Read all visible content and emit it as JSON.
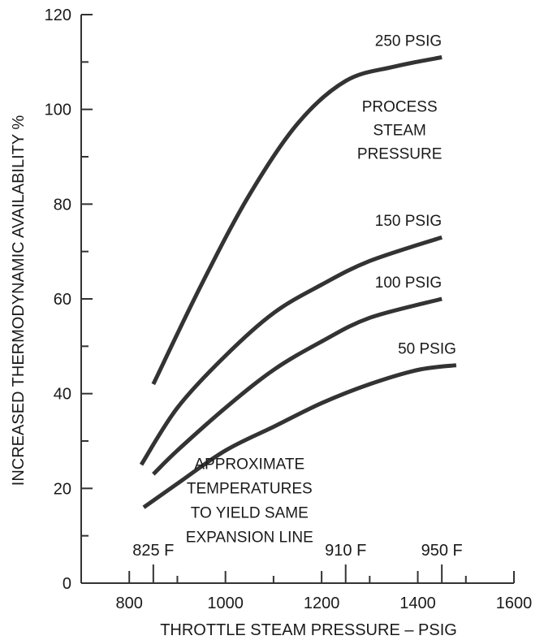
{
  "chart_data": {
    "type": "line",
    "xlabel": "THROTTLE STEAM PRESSURE – PSIG",
    "ylabel": "INCREASED THERMODYNAMIC AVAILABILITY %",
    "xlim": [
      700,
      1600
    ],
    "ylim": [
      0,
      120
    ],
    "x_ticks": [
      800,
      1000,
      1200,
      1400,
      1600
    ],
    "x_tick_labels": [
      "800",
      "1000",
      "1200",
      "1400",
      "1600"
    ],
    "y_ticks": [
      0,
      20,
      40,
      60,
      80,
      100,
      120
    ],
    "y_tick_labels": [
      "0",
      "20",
      "40",
      "60",
      "80",
      "100",
      "120"
    ],
    "grid": false,
    "series": [
      {
        "name": "250 PSIG",
        "x": [
          850,
          950,
          1050,
          1150,
          1250,
          1350,
          1450
        ],
        "y": [
          42,
          63,
          82,
          97,
          106,
          109,
          111
        ]
      },
      {
        "name": "150 PSIG",
        "x": [
          825,
          900,
          1000,
          1100,
          1200,
          1300,
          1450
        ],
        "y": [
          25,
          37,
          48,
          57,
          63,
          68,
          73
        ]
      },
      {
        "name": "100 PSIG",
        "x": [
          850,
          900,
          1000,
          1100,
          1200,
          1300,
          1450
        ],
        "y": [
          23,
          28,
          37,
          45,
          51,
          56,
          60
        ]
      },
      {
        "name": "50 PSIG",
        "x": [
          830,
          900,
          1000,
          1100,
          1200,
          1300,
          1400,
          1480
        ],
        "y": [
          16,
          21,
          28,
          33,
          38,
          42,
          45,
          46
        ]
      }
    ],
    "annotations": {
      "process_steam": [
        "PROCESS",
        "STEAM",
        "PRESSURE"
      ],
      "approximate": [
        "APPROXIMATE",
        "TEMPERATURES",
        "TO YIELD SAME",
        "EXPANSION LINE"
      ]
    },
    "temperature_markers": [
      {
        "label": "825 F",
        "x": 850
      },
      {
        "label": "910 F",
        "x": 1250
      },
      {
        "label": "950 F",
        "x": 1450
      }
    ],
    "line_color": "#333333"
  }
}
